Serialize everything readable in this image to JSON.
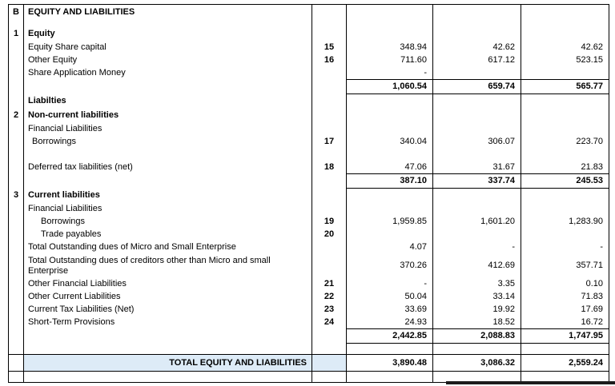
{
  "colors": {
    "total_row_highlight": "#ddebf7",
    "grid_line": "#000000"
  },
  "table": {
    "rows": [
      {
        "sec": "B",
        "desc": "EQUITY AND LIABILITIES",
        "type": "title"
      },
      {
        "sec": "1",
        "desc": "Equity",
        "type": "section"
      },
      {
        "desc": "Equity Share capital",
        "note": "15",
        "v1": "348.94",
        "v2": "42.62",
        "v3": "42.62",
        "type": "item"
      },
      {
        "desc": "Other Equity",
        "note": "16",
        "v1": "711.60",
        "v2": "617.12",
        "v3": "523.15",
        "type": "item"
      },
      {
        "desc": "Share Application Money",
        "v1": "-",
        "type": "item"
      },
      {
        "v1": "1,060.54",
        "v2": "659.74",
        "v3": "565.77",
        "type": "subtotal"
      },
      {
        "desc": "Liabilties",
        "type": "section"
      },
      {
        "sec": "2",
        "desc": "Non-current liabilities",
        "type": "section"
      },
      {
        "desc": "Financial Liabilities",
        "type": "item"
      },
      {
        "desc": "Borrowings",
        "note": "17",
        "v1": "340.04",
        "v2": "306.07",
        "v3": "223.70",
        "type": "item",
        "indent": 1
      },
      {
        "type": "spacer"
      },
      {
        "desc": "Deferred tax liabilities (net)",
        "note": "18",
        "v1": "47.06",
        "v2": "31.67",
        "v3": "21.83",
        "type": "item"
      },
      {
        "v1": "387.10",
        "v2": "337.74",
        "v3": "245.53",
        "type": "subtotal"
      },
      {
        "sec": "3",
        "desc": "Current liabilities",
        "type": "section"
      },
      {
        "desc": "Financial Liabilities",
        "type": "item"
      },
      {
        "desc": "Borrowings",
        "note": "19",
        "v1": "1,959.85",
        "v2": "1,601.20",
        "v3": "1,283.90",
        "type": "item",
        "indent": 2
      },
      {
        "desc": "Trade payables",
        "note": "20",
        "type": "item",
        "indent": 2
      },
      {
        "desc": "Total Outstanding dues of Micro and Small Enterprise",
        "v1": "4.07",
        "v2": "-",
        "v3": "-",
        "type": "item"
      },
      {
        "desc": "Total Outstanding dues of creditors other than Micro and small Enterprise",
        "v1": "370.26",
        "v2": "412.69",
        "v3": "357.71",
        "type": "item-wrap"
      },
      {
        "desc": "Other Financial Liabilities",
        "note": "21",
        "v1": "-",
        "v2": "3.35",
        "v3": "0.10",
        "type": "item"
      },
      {
        "desc": "Other Current Liabilities",
        "note": "22",
        "v1": "50.04",
        "v2": "33.14",
        "v3": "71.83",
        "type": "item"
      },
      {
        "desc": "Current Tax Liabilities (Net)",
        "note": "23",
        "v1": "33.69",
        "v2": "19.92",
        "v3": "17.69",
        "type": "item"
      },
      {
        "desc": "Short-Term Provisions",
        "note": "24",
        "v1": "24.93",
        "v2": "18.52",
        "v3": "16.72",
        "type": "item"
      },
      {
        "v1": "2,442.85",
        "v2": "2,088.83",
        "v3": "1,747.95",
        "type": "subtotal"
      },
      {
        "type": "gap"
      },
      {
        "desc": "TOTAL EQUITY AND LIABILITIES",
        "v1": "3,890.48",
        "v2": "3,086.32",
        "v3": "2,559.24",
        "type": "total"
      },
      {
        "type": "gap"
      }
    ]
  }
}
